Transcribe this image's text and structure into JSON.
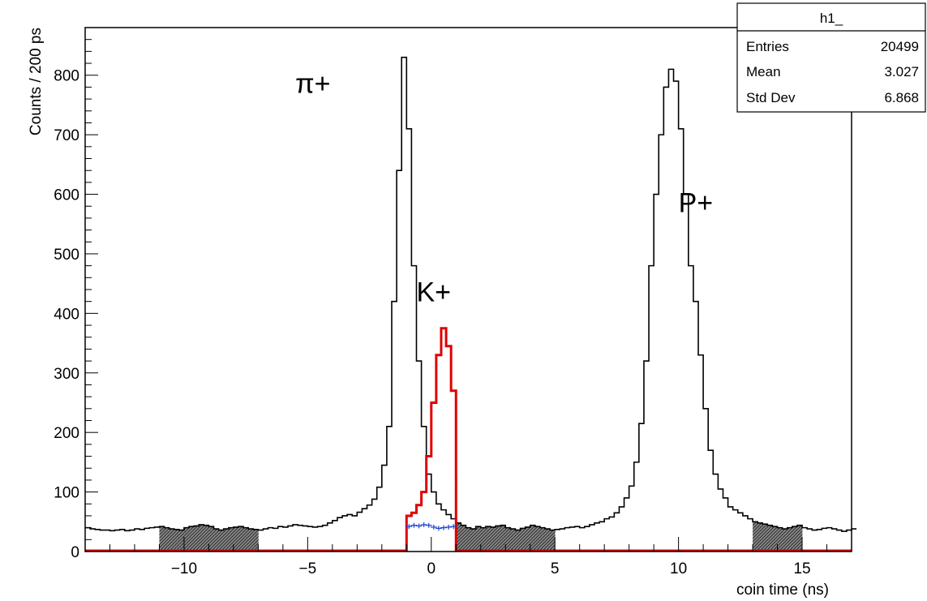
{
  "chart_data": {
    "type": "histogram",
    "xlabel": "coin time (ns)",
    "ylabel": "Counts / 200 ps",
    "xlim": [
      -14,
      17
    ],
    "ylim": [
      0,
      880
    ],
    "xticks": [
      -10,
      -5,
      0,
      5,
      10,
      15
    ],
    "xtick_labels": [
      "−10",
      "−5",
      "0",
      "5",
      "10",
      "15"
    ],
    "yticks": [
      0,
      100,
      200,
      300,
      400,
      500,
      600,
      700,
      800
    ],
    "ytick_labels": [
      "0",
      "100",
      "200",
      "300",
      "400",
      "500",
      "600",
      "700",
      "800"
    ],
    "bin_width": 0.2,
    "x_start": -14,
    "series": [
      {
        "role": "coincidence-time",
        "color": "#000000",
        "values": [
          40,
          38,
          37,
          36,
          36,
          35,
          36,
          37,
          35,
          36,
          38,
          37,
          39,
          40,
          41,
          42,
          40,
          38,
          37,
          36,
          40,
          42,
          43,
          45,
          44,
          42,
          38,
          36,
          38,
          40,
          41,
          42,
          40,
          38,
          37,
          36,
          38,
          40,
          39,
          42,
          41,
          43,
          45,
          44,
          43,
          42,
          41,
          42,
          44,
          48,
          52,
          57,
          60,
          62,
          60,
          66,
          72,
          78,
          88,
          108,
          145,
          210,
          420,
          640,
          830,
          710,
          480,
          320,
          210,
          130,
          100,
          80,
          70,
          62,
          55,
          48,
          44,
          40,
          38,
          42,
          40,
          42,
          41,
          43,
          44,
          40,
          38,
          36,
          39,
          41,
          44,
          42,
          40,
          38,
          36,
          37,
          38,
          40,
          41,
          42,
          40,
          42,
          45,
          48,
          50,
          55,
          58,
          65,
          75,
          90,
          110,
          150,
          215,
          320,
          480,
          600,
          700,
          780,
          810,
          790,
          710,
          600,
          480,
          420,
          330,
          240,
          170,
          130,
          105,
          90,
          75,
          70,
          65,
          60,
          55,
          50,
          48,
          46,
          44,
          42,
          40,
          38,
          40,
          42,
          44,
          40,
          38,
          36,
          37,
          39,
          40,
          38,
          36,
          34,
          36,
          38
        ]
      },
      {
        "role": "kaon-window",
        "color": "#e00000",
        "x_range": [
          -1.0,
          1.0
        ],
        "values": [
          60,
          65,
          78,
          100,
          160,
          250,
          330,
          375,
          345,
          270,
          125
        ]
      },
      {
        "role": "background-estimate",
        "color": "#1a3fd0",
        "x_range": [
          -1.0,
          1.0
        ],
        "values": [
          42,
          44,
          43,
          45,
          44,
          41,
          39,
          40,
          41,
          42
        ]
      }
    ],
    "shaded_regions": [
      {
        "x_range": [
          -11,
          -7
        ],
        "fill": "crosshatch-gray"
      },
      {
        "x_range": [
          1,
          5
        ],
        "fill": "crosshatch-gray"
      },
      {
        "x_range": [
          13,
          15
        ],
        "fill": "crosshatch-gray"
      }
    ],
    "annotations": [
      {
        "text": "π+",
        "x": -5.5,
        "y": 800
      },
      {
        "text": "K+",
        "x": -0.6,
        "y": 450
      },
      {
        "text": "P+",
        "x": 10.0,
        "y": 600
      }
    ],
    "stats_box": {
      "title": "h1_",
      "rows": [
        {
          "label": "Entries",
          "value": "20499"
        },
        {
          "label": "Mean",
          "value": "3.027"
        },
        {
          "label": "Std Dev",
          "value": "6.868"
        }
      ]
    },
    "grid": false
  }
}
